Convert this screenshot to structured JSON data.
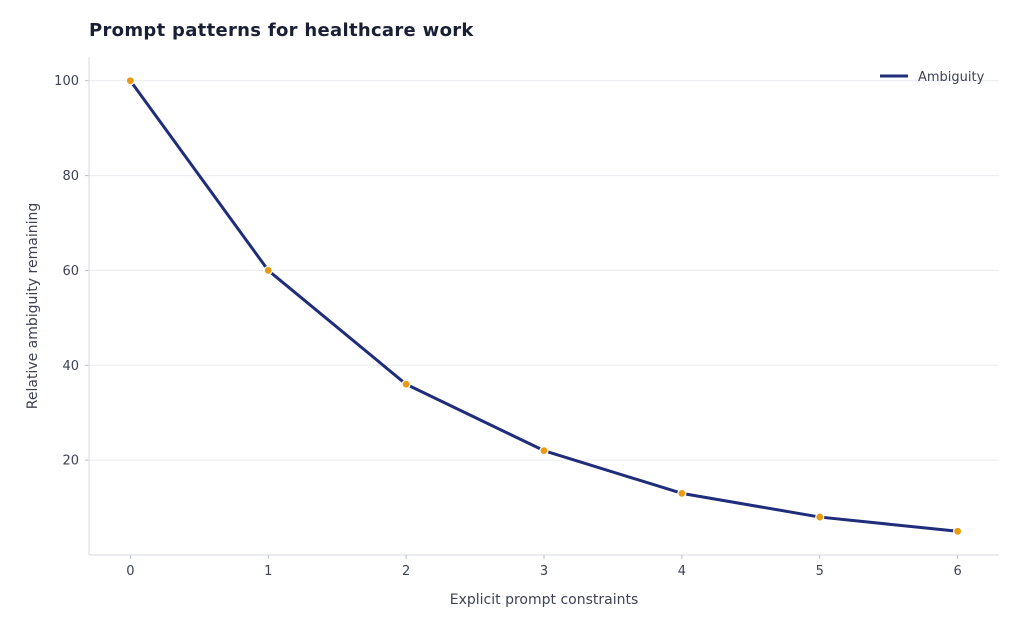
{
  "chart_data": {
    "type": "line",
    "title": "Prompt patterns for healthcare work",
    "xlabel": "Explicit prompt constraints",
    "ylabel": "Relative ambiguity remaining",
    "x": [
      0,
      1,
      2,
      3,
      4,
      5,
      6
    ],
    "xlim": [
      -0.3,
      6.3
    ],
    "ylim": [
      0,
      105
    ],
    "xticks": [
      "0",
      "1",
      "2",
      "3",
      "4",
      "5",
      "6"
    ],
    "yticks": [
      "20",
      "40",
      "60",
      "80",
      "100"
    ],
    "grid": "horizontal",
    "legend_position": "top-right",
    "series": [
      {
        "name": "Ambiguity",
        "values": [
          100,
          60,
          36,
          22,
          13,
          8,
          5
        ],
        "line_color": "#1f2d7a",
        "marker_color": "#e89b12"
      }
    ]
  }
}
